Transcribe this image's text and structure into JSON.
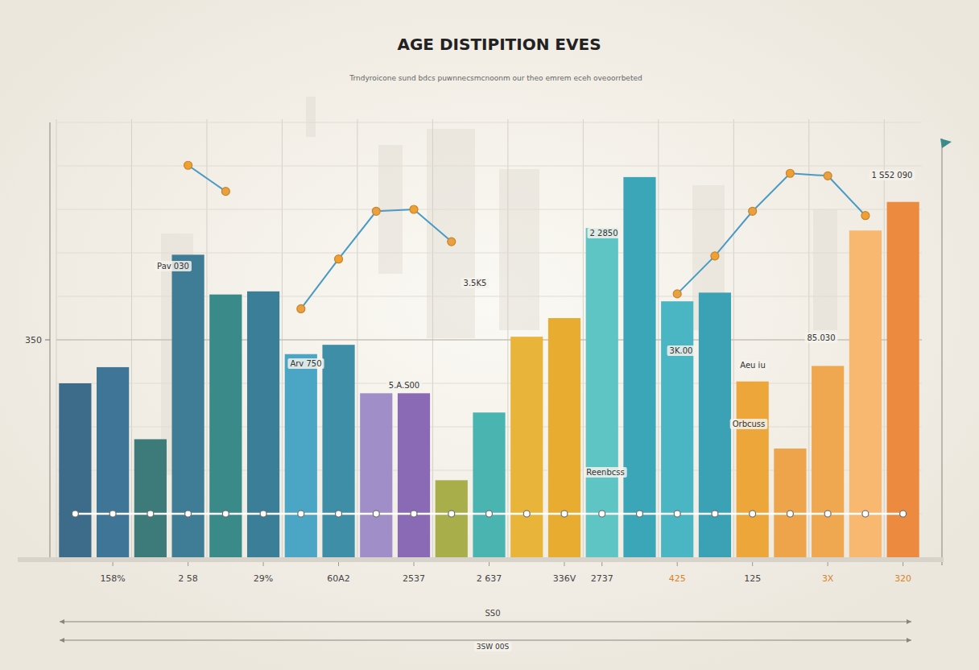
{
  "chart_data": {
    "type": "bar",
    "title": "AGE DISTIPITION EVES",
    "subtitle": "Trndyroicone sund bdcs puwnnecsmcnoonm our theo emrem eceh oveoorrbeted",
    "xlabel": "SS0",
    "categories": [
      null,
      "158%",
      null,
      "2 58",
      null,
      "29%",
      null,
      "60A2",
      null,
      "2537",
      null,
      "2 637",
      null,
      "336V",
      "2737",
      null,
      "425",
      null,
      "125",
      null,
      "3X",
      null,
      "320"
    ],
    "ylim": [
      0,
      700
    ],
    "yticks": [
      350
    ],
    "grid": true,
    "series": [
      {
        "type": "bar",
        "colors": [
          "#3d6b8a",
          "#3f7596",
          "#3d7a7a",
          "#3f7c96",
          "#3a8a8a",
          "#3b7e97",
          "#4aa6c4",
          "#3f8ea8",
          "#a08ec8",
          "#8a6ab4",
          "#a8ae4a",
          "#4ab4b0",
          "#e8b43a",
          "#e8ac30",
          "#5ec4c4",
          "#3aa6b8",
          "#4ab6c4",
          "#3aa2b4",
          "#eca63a",
          "#eea44a",
          "#f0a850",
          "#f8b870",
          "#ec8a40"
        ],
        "values": [
          280,
          306,
          190,
          487,
          423,
          428,
          327,
          342,
          264,
          264,
          124,
          233,
          355,
          385,
          530,
          612,
          412,
          426,
          283,
          175,
          308,
          526,
          572
        ]
      },
      {
        "type": "line",
        "color": "#ffffff",
        "marker": "circle",
        "values": [
          70,
          70,
          70,
          70,
          70,
          70,
          70,
          70,
          70,
          70,
          70,
          70,
          70,
          70,
          70,
          70,
          70,
          70,
          70,
          70,
          70,
          70,
          70
        ]
      },
      {
        "type": "line",
        "color": "#4a9ac4",
        "marker": "circle",
        "values": [
          null,
          null,
          null,
          631,
          589,
          null,
          400,
          480,
          557,
          560,
          508,
          null,
          null,
          null,
          null,
          null,
          424,
          485,
          557,
          618,
          614,
          550,
          null
        ]
      }
    ],
    "annotations": [
      "Pav 030",
      "Arv 750",
      "5.A.S00",
      "3.5K5",
      "2 2850",
      "3K.00",
      "85.030",
      "1 S52 090",
      "Aeu iu",
      "Orbcuss",
      "Reenbcss",
      "3SW 00S"
    ]
  }
}
